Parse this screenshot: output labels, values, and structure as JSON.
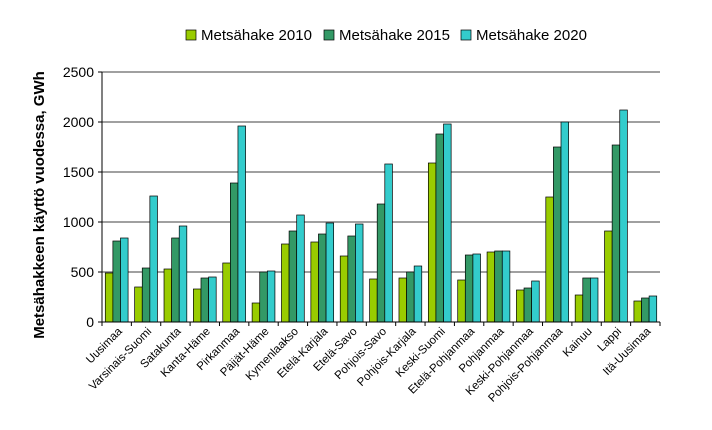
{
  "chart_data": {
    "type": "bar",
    "title": "",
    "xlabel": "",
    "ylabel": "Metsähakkeen käyttö vuodessa, GWh",
    "ylim": [
      0,
      2500
    ],
    "yticks": [
      "0",
      "500",
      "1000",
      "1500",
      "2000",
      "2500"
    ],
    "grid": true,
    "legend_position": "top",
    "categories": [
      "Uusimaa",
      "Varsinais-Suomi",
      "Satakunta",
      "Kanta-Häme",
      "Pirkanmaa",
      "Päijät-Häme",
      "Kymenlaakso",
      "Etelä-Karjala",
      "Etelä-Savo",
      "Pohjois-Savo",
      "Pohjois-Karjala",
      "Keski-Suomi",
      "Etelä-Pohjanmaa",
      "Pohjanmaa",
      "Keski-Pohjanmaa",
      "Pohjois-Pohjanmaa",
      "Kainuu",
      "Lappi",
      "Itä-Uusimaa"
    ],
    "series": [
      {
        "name": "Metsähake 2010",
        "color": "#99cc00",
        "values": [
          490,
          350,
          530,
          330,
          590,
          190,
          780,
          800,
          660,
          430,
          440,
          1590,
          420,
          700,
          320,
          1250,
          270,
          910,
          210
        ]
      },
      {
        "name": "Metsähake 2015",
        "color": "#339966",
        "values": [
          810,
          540,
          840,
          440,
          1390,
          500,
          910,
          880,
          860,
          1180,
          500,
          1880,
          670,
          710,
          340,
          1750,
          440,
          1770,
          240
        ]
      },
      {
        "name": "Metsähake 2020",
        "color": "#33cccc",
        "values": [
          840,
          1260,
          960,
          450,
          1960,
          510,
          1070,
          990,
          980,
          1580,
          560,
          1980,
          680,
          710,
          410,
          2000,
          440,
          2120,
          260
        ]
      }
    ]
  }
}
